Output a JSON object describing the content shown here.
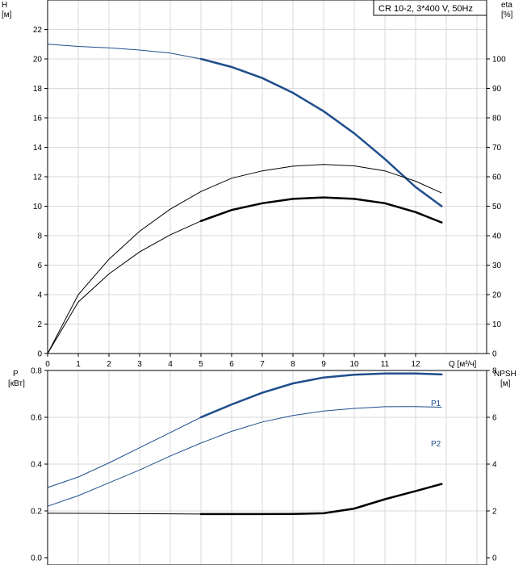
{
  "chart_data": [
    {
      "type": "line",
      "title": "CR 10-2, 3*400 V, 50Hz",
      "xlabel": "Q [м³/ч]",
      "xlim": [
        0,
        13
      ],
      "xticks": [
        "0",
        "1",
        "2",
        "3",
        "4",
        "5",
        "6",
        "7",
        "8",
        "9",
        "10",
        "11",
        "12"
      ],
      "ylabel_left": [
        "H",
        "[м]"
      ],
      "ylim_left": [
        0,
        24
      ],
      "yticks_left": [
        "0",
        "2",
        "4",
        "6",
        "8",
        "10",
        "12",
        "14",
        "16",
        "18",
        "20",
        "22"
      ],
      "ylabel_right": [
        "eta",
        "[%]"
      ],
      "ylim_right": [
        0,
        120
      ],
      "yticks_right": [
        "0",
        "10",
        "20",
        "30",
        "40",
        "50",
        "60",
        "70",
        "80",
        "90",
        "100"
      ],
      "grid": true,
      "series": [
        {
          "axis": "left",
          "color": "#1f4e8c",
          "points": [
            [
              0,
              21.0
            ],
            [
              1,
              20.85
            ],
            [
              2,
              20.75
            ],
            [
              3,
              20.6
            ],
            [
              4,
              20.4
            ],
            [
              5,
              20.0
            ],
            [
              6,
              19.45
            ],
            [
              7,
              18.7
            ],
            [
              8,
              17.7
            ],
            [
              9,
              16.45
            ],
            [
              10,
              14.95
            ],
            [
              11,
              13.2
            ],
            [
              12,
              11.3
            ],
            [
              12.85,
              10.0
            ]
          ],
          "bold_from": 5
        },
        {
          "axis": "right",
          "color": "#000000",
          "points": [
            [
              0,
              0
            ],
            [
              1,
              20
            ],
            [
              2,
              32
            ],
            [
              3,
              41.5
            ],
            [
              4,
              49
            ],
            [
              5,
              55
            ],
            [
              6,
              59.5
            ],
            [
              7,
              62
            ],
            [
              8,
              63.6
            ],
            [
              9,
              64.2
            ],
            [
              10,
              63.7
            ],
            [
              11,
              62
            ],
            [
              12,
              58.5
            ],
            [
              12.85,
              54.5
            ]
          ],
          "bold_from": 99
        },
        {
          "axis": "right",
          "color": "#000000",
          "points": [
            [
              0,
              0
            ],
            [
              1,
              17.5
            ],
            [
              2,
              27
            ],
            [
              3,
              34.5
            ],
            [
              4,
              40.3
            ],
            [
              5,
              45
            ],
            [
              6,
              48.7
            ],
            [
              7,
              51
            ],
            [
              8,
              52.5
            ],
            [
              9,
              53
            ],
            [
              10,
              52.5
            ],
            [
              11,
              51
            ],
            [
              12,
              48
            ],
            [
              12.85,
              44.5
            ]
          ],
          "bold_from": 5
        }
      ]
    },
    {
      "type": "line",
      "xlim": [
        0,
        13
      ],
      "ylabel_left": [
        "P",
        "[кВт]"
      ],
      "ylim_left": [
        0,
        0.8
      ],
      "yticks_left": [
        "0.0",
        "0.2",
        "0.4",
        "0.6",
        "0.8"
      ],
      "ylabel_right": [
        "NPSH",
        "[м]"
      ],
      "ylim_right": [
        0,
        8
      ],
      "yticks_right": [
        "0",
        "2",
        "4",
        "6",
        "8"
      ],
      "grid": true,
      "series": [
        {
          "name": "P1",
          "axis": "left",
          "color": "#1f4e8c",
          "points": [
            [
              0,
              0.3
            ],
            [
              1,
              0.345
            ],
            [
              2,
              0.405
            ],
            [
              3,
              0.47
            ],
            [
              4,
              0.535
            ],
            [
              5,
              0.6
            ],
            [
              6,
              0.655
            ],
            [
              7,
              0.705
            ],
            [
              8,
              0.745
            ],
            [
              9,
              0.77
            ],
            [
              10,
              0.782
            ],
            [
              11,
              0.787
            ],
            [
              12,
              0.787
            ],
            [
              12.85,
              0.783
            ]
          ],
          "bold_from": 5
        },
        {
          "name": "P2",
          "axis": "left",
          "color": "#1f4e8c",
          "points": [
            [
              0,
              0.22
            ],
            [
              1,
              0.265
            ],
            [
              2,
              0.32
            ],
            [
              3,
              0.375
            ],
            [
              4,
              0.435
            ],
            [
              5,
              0.49
            ],
            [
              6,
              0.54
            ],
            [
              7,
              0.58
            ],
            [
              8,
              0.608
            ],
            [
              9,
              0.627
            ],
            [
              10,
              0.638
            ],
            [
              11,
              0.645
            ],
            [
              12,
              0.646
            ],
            [
              12.85,
              0.643
            ]
          ],
          "bold_from": 99
        },
        {
          "axis": "right",
          "color": "#000000",
          "points": [
            [
              0,
              1.9
            ],
            [
              2,
              1.89
            ],
            [
              4,
              1.875
            ],
            [
              5,
              1.865
            ],
            [
              6,
              1.865
            ],
            [
              7,
              1.865
            ],
            [
              8,
              1.87
            ],
            [
              9,
              1.9
            ],
            [
              10,
              2.1
            ],
            [
              11,
              2.5
            ],
            [
              12,
              2.85
            ],
            [
              12.85,
              3.15
            ]
          ],
          "bold_from": 5
        }
      ]
    }
  ]
}
